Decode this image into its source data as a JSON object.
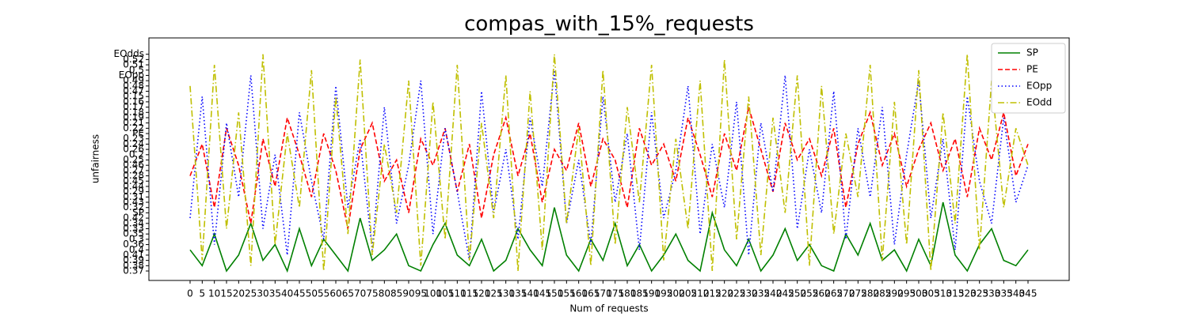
{
  "chart_data": {
    "type": "line",
    "title": "compas_with_15%_requests",
    "xlabel": "Num of requests",
    "ylabel": "unfairness",
    "categories": [
      "0",
      "5",
      "10",
      "15",
      "20",
      "25",
      "30",
      "35",
      "40",
      "45",
      "50",
      "55",
      "60",
      "65",
      "70",
      "75",
      "80",
      "85",
      "90",
      "95",
      "100",
      "105",
      "110",
      "115",
      "120",
      "125",
      "130",
      "135",
      "140",
      "145",
      "150",
      "155",
      "160",
      "165",
      "170",
      "175",
      "180",
      "185",
      "190",
      "195",
      "200",
      "205",
      "210",
      "215",
      "220",
      "225",
      "230",
      "235",
      "240",
      "245",
      "250",
      "255",
      "260",
      "265",
      "270",
      "275",
      "280",
      "285",
      "290",
      "295",
      "300",
      "305",
      "310",
      "315",
      "320",
      "325",
      "330",
      "335",
      "340",
      "345"
    ],
    "series": [
      {
        "name": "SP",
        "color": "#008000",
        "dash": "solid",
        "values": [
          4,
          1,
          7,
          0,
          3,
          9,
          2,
          5,
          0,
          8,
          1,
          6,
          3,
          0,
          10,
          2,
          4,
          7,
          1,
          0,
          5,
          9,
          3,
          1,
          6,
          0,
          2,
          8,
          4,
          1,
          12,
          3,
          0,
          6,
          2,
          9,
          1,
          5,
          0,
          3,
          7,
          2,
          0,
          11,
          4,
          1,
          6,
          0,
          3,
          8,
          2,
          5,
          1,
          0,
          7,
          3,
          9,
          2,
          4,
          0,
          6,
          1,
          13,
          3,
          0,
          5,
          8,
          2,
          1,
          4
        ]
      },
      {
        "name": "PE",
        "color": "#ff0000",
        "dash": "dashed",
        "values": [
          18,
          24,
          12,
          27,
          20,
          9,
          25,
          16,
          29,
          22,
          14,
          26,
          19,
          8,
          23,
          28,
          17,
          21,
          11,
          25,
          20,
          27,
          15,
          24,
          10,
          22,
          29,
          18,
          26,
          13,
          23,
          19,
          28,
          16,
          25,
          21,
          12,
          27,
          20,
          24,
          17,
          29,
          22,
          14,
          26,
          19,
          31,
          23,
          15,
          28,
          21,
          25,
          18,
          27,
          12,
          24,
          30,
          20,
          26,
          16,
          23,
          28,
          19,
          25,
          14,
          27,
          21,
          30,
          18,
          24
        ]
      },
      {
        "name": "EOpp",
        "color": "#0000ff",
        "dash": "dotted",
        "values": [
          10,
          33,
          5,
          28,
          14,
          37,
          8,
          22,
          3,
          30,
          17,
          6,
          35,
          12,
          25,
          4,
          31,
          9,
          20,
          36,
          7,
          27,
          15,
          2,
          34,
          11,
          23,
          6,
          29,
          16,
          38,
          9,
          21,
          5,
          33,
          13,
          26,
          4,
          30,
          10,
          19,
          35,
          7,
          24,
          12,
          32,
          3,
          28,
          15,
          37,
          8,
          23,
          11,
          34,
          6,
          27,
          14,
          31,
          5,
          22,
          36,
          10,
          25,
          4,
          33,
          17,
          9,
          29,
          13,
          20
        ]
      },
      {
        "name": "EOdd",
        "color": "#bfbf00",
        "dash": "dashdot",
        "values": [
          35,
          2,
          39,
          8,
          30,
          1,
          41,
          5,
          26,
          12,
          38,
          0,
          33,
          7,
          40,
          3,
          24,
          11,
          36,
          1,
          32,
          6,
          39,
          2,
          28,
          10,
          37,
          0,
          34,
          4,
          41,
          9,
          27,
          1,
          38,
          5,
          31,
          13,
          39,
          2,
          25,
          8,
          36,
          0,
          40,
          6,
          33,
          3,
          29,
          11,
          37,
          1,
          35,
          7,
          26,
          14,
          39,
          2,
          32,
          5,
          38,
          0,
          30,
          9,
          41,
          4,
          36,
          12,
          27,
          20
        ]
      }
    ],
    "ylim": [
      -1.79,
      44.09
    ],
    "yticks": [
      {
        "value": 0,
        "label": "0.37"
      },
      {
        "value": 1,
        "label": "0.38"
      },
      {
        "value": 2,
        "label": "0.39"
      },
      {
        "value": 3,
        "label": "0.41"
      },
      {
        "value": 4,
        "label": "0.4"
      },
      {
        "value": 5,
        "label": "0.36"
      },
      {
        "value": 6,
        "label": "0.3"
      },
      {
        "value": 7,
        "label": "0.35"
      },
      {
        "value": 8,
        "label": "0.33"
      },
      {
        "value": 9,
        "label": "0.34"
      },
      {
        "value": 10,
        "label": "0.42"
      },
      {
        "value": 11,
        "label": "SP"
      },
      {
        "value": 12,
        "label": "0.32"
      },
      {
        "value": 13,
        "label": "0.43"
      },
      {
        "value": 14,
        "label": "0.31"
      },
      {
        "value": 15,
        "label": "0.29"
      },
      {
        "value": 16,
        "label": "0.44"
      },
      {
        "value": 17,
        "label": "0.45"
      },
      {
        "value": 18,
        "label": "0.28"
      },
      {
        "value": 19,
        "label": "0.27"
      },
      {
        "value": 20,
        "label": "0.46"
      },
      {
        "value": 21,
        "label": "0.25"
      },
      {
        "value": 22,
        "label": "0.2"
      },
      {
        "value": 23,
        "label": "0.26"
      },
      {
        "value": 24,
        "label": "0.24"
      },
      {
        "value": 25,
        "label": "0.23"
      },
      {
        "value": 26,
        "label": "PE"
      },
      {
        "value": 27,
        "label": "0.22"
      },
      {
        "value": 28,
        "label": "0.21"
      },
      {
        "value": 29,
        "label": "0.19"
      },
      {
        "value": 30,
        "label": "0.18"
      },
      {
        "value": 31,
        "label": "0.17"
      },
      {
        "value": 32,
        "label": "0.16"
      },
      {
        "value": 33,
        "label": "0.15"
      },
      {
        "value": 34,
        "label": "0.47"
      },
      {
        "value": 35,
        "label": "0.48"
      },
      {
        "value": 36,
        "label": "0.49"
      },
      {
        "value": 37,
        "label": "EOpp"
      },
      {
        "value": 38,
        "label": "0.5"
      },
      {
        "value": 39,
        "label": "0.51"
      },
      {
        "value": 40,
        "label": "0.52"
      },
      {
        "value": 41,
        "label": "EOdds"
      }
    ],
    "legend": "upper right"
  }
}
